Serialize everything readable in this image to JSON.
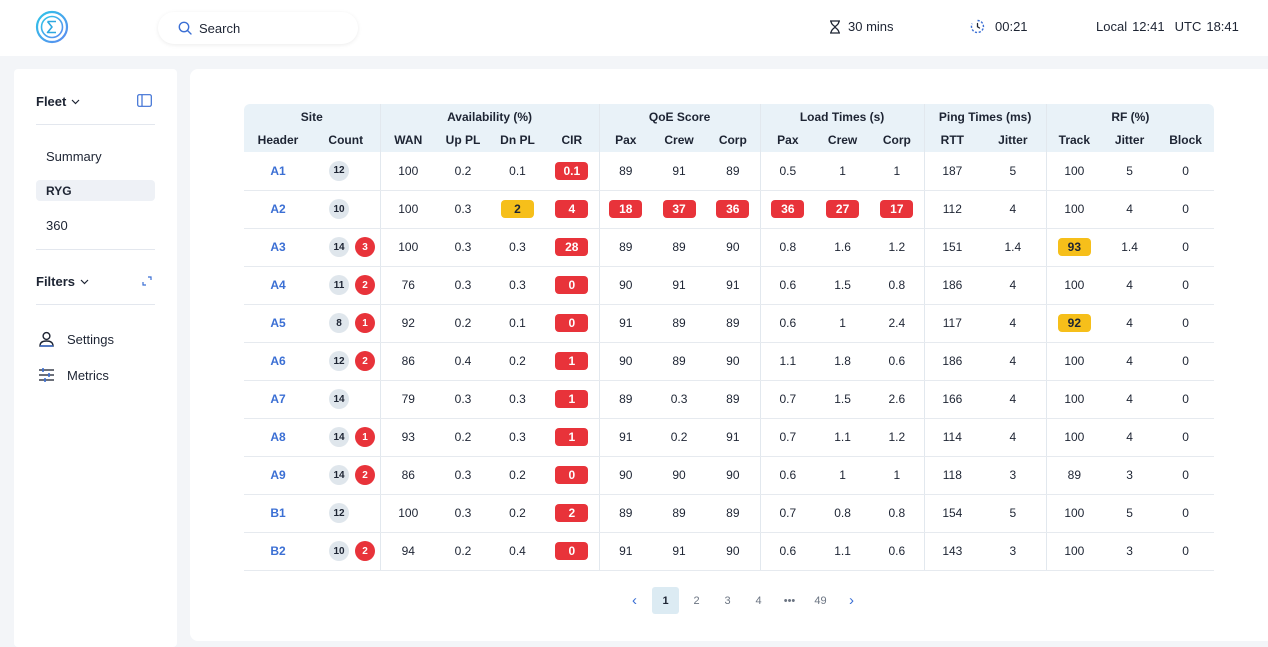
{
  "topbar": {
    "search_placeholder": "Search",
    "duration": "30 mins",
    "timer": "00:21",
    "local_label": "Local",
    "local_time": "12:41",
    "utc_label": "UTC",
    "utc_time": "18:41"
  },
  "sidebar": {
    "fleet_label": "Fleet",
    "nav": [
      "Summary",
      "RYG",
      "360"
    ],
    "active_nav": "RYG",
    "filters_label": "Filters",
    "settings_label": "Settings",
    "metrics_label": "Metrics"
  },
  "table": {
    "groups": [
      {
        "label": "Site",
        "span": 2
      },
      {
        "label": "Availability (%)",
        "span": 4
      },
      {
        "label": "QoE Score",
        "span": 3
      },
      {
        "label": "Load Times (s)",
        "span": 3
      },
      {
        "label": "Ping Times (ms)",
        "span": 2
      },
      {
        "label": "RF (%)",
        "span": 3
      }
    ],
    "columns": [
      "Header",
      "Count",
      "WAN",
      "Up PL",
      "Dn PL",
      "CIR",
      "Pax",
      "Crew",
      "Corp",
      "Pax",
      "Crew",
      "Corp",
      "RTT",
      "Jitter",
      "Track",
      "Jitter",
      "Block"
    ],
    "rows": [
      {
        "site": "A1",
        "count": "12",
        "alerts": "",
        "cells": [
          {
            "v": "100"
          },
          {
            "v": "0.2"
          },
          {
            "v": "0.1"
          },
          {
            "v": "0.1",
            "s": "red"
          },
          {
            "v": "89"
          },
          {
            "v": "91"
          },
          {
            "v": "89"
          },
          {
            "v": "0.5"
          },
          {
            "v": "1"
          },
          {
            "v": "1"
          },
          {
            "v": "187"
          },
          {
            "v": "5"
          },
          {
            "v": "100"
          },
          {
            "v": "5"
          },
          {
            "v": "0"
          }
        ]
      },
      {
        "site": "A2",
        "count": "10",
        "alerts": "",
        "cells": [
          {
            "v": "100"
          },
          {
            "v": "0.3"
          },
          {
            "v": "2",
            "s": "amber"
          },
          {
            "v": "4",
            "s": "red"
          },
          {
            "v": "18",
            "s": "red"
          },
          {
            "v": "37",
            "s": "red"
          },
          {
            "v": "36",
            "s": "red"
          },
          {
            "v": "36",
            "s": "red"
          },
          {
            "v": "27",
            "s": "red"
          },
          {
            "v": "17",
            "s": "red"
          },
          {
            "v": "112"
          },
          {
            "v": "4"
          },
          {
            "v": "100"
          },
          {
            "v": "4"
          },
          {
            "v": "0"
          }
        ]
      },
      {
        "site": "A3",
        "count": "14",
        "alerts": "3",
        "cells": [
          {
            "v": "100"
          },
          {
            "v": "0.3"
          },
          {
            "v": "0.3"
          },
          {
            "v": "28",
            "s": "red"
          },
          {
            "v": "89"
          },
          {
            "v": "89"
          },
          {
            "v": "90"
          },
          {
            "v": "0.8"
          },
          {
            "v": "1.6"
          },
          {
            "v": "1.2"
          },
          {
            "v": "151"
          },
          {
            "v": "1.4"
          },
          {
            "v": "93",
            "s": "amber"
          },
          {
            "v": "1.4"
          },
          {
            "v": "0"
          }
        ]
      },
      {
        "site": "A4",
        "count": "11",
        "alerts": "2",
        "cells": [
          {
            "v": "76"
          },
          {
            "v": "0.3"
          },
          {
            "v": "0.3"
          },
          {
            "v": "0",
            "s": "red"
          },
          {
            "v": "90"
          },
          {
            "v": "91"
          },
          {
            "v": "91"
          },
          {
            "v": "0.6"
          },
          {
            "v": "1.5"
          },
          {
            "v": "0.8"
          },
          {
            "v": "186"
          },
          {
            "v": "4"
          },
          {
            "v": "100"
          },
          {
            "v": "4"
          },
          {
            "v": "0"
          }
        ]
      },
      {
        "site": "A5",
        "count": "8",
        "alerts": "1",
        "cells": [
          {
            "v": "92"
          },
          {
            "v": "0.2"
          },
          {
            "v": "0.1"
          },
          {
            "v": "0",
            "s": "red"
          },
          {
            "v": "91"
          },
          {
            "v": "89"
          },
          {
            "v": "89"
          },
          {
            "v": "0.6"
          },
          {
            "v": "1"
          },
          {
            "v": "2.4"
          },
          {
            "v": "117"
          },
          {
            "v": "4"
          },
          {
            "v": "92",
            "s": "amber"
          },
          {
            "v": "4"
          },
          {
            "v": "0"
          }
        ]
      },
      {
        "site": "A6",
        "count": "12",
        "alerts": "2",
        "cells": [
          {
            "v": "86"
          },
          {
            "v": "0.4"
          },
          {
            "v": "0.2"
          },
          {
            "v": "1",
            "s": "red"
          },
          {
            "v": "90"
          },
          {
            "v": "89"
          },
          {
            "v": "90"
          },
          {
            "v": "1.1"
          },
          {
            "v": "1.8"
          },
          {
            "v": "0.6"
          },
          {
            "v": "186"
          },
          {
            "v": "4"
          },
          {
            "v": "100"
          },
          {
            "v": "4"
          },
          {
            "v": "0"
          }
        ]
      },
      {
        "site": "A7",
        "count": "14",
        "alerts": "",
        "cells": [
          {
            "v": "79"
          },
          {
            "v": "0.3"
          },
          {
            "v": "0.3"
          },
          {
            "v": "1",
            "s": "red"
          },
          {
            "v": "89"
          },
          {
            "v": "0.3"
          },
          {
            "v": "89"
          },
          {
            "v": "0.7"
          },
          {
            "v": "1.5"
          },
          {
            "v": "2.6"
          },
          {
            "v": "166"
          },
          {
            "v": "4"
          },
          {
            "v": "100"
          },
          {
            "v": "4"
          },
          {
            "v": "0"
          }
        ]
      },
      {
        "site": "A8",
        "count": "14",
        "alerts": "1",
        "cells": [
          {
            "v": "93"
          },
          {
            "v": "0.2"
          },
          {
            "v": "0.3"
          },
          {
            "v": "1",
            "s": "red"
          },
          {
            "v": "91"
          },
          {
            "v": "0.2"
          },
          {
            "v": "91"
          },
          {
            "v": "0.7"
          },
          {
            "v": "1.1"
          },
          {
            "v": "1.2"
          },
          {
            "v": "114"
          },
          {
            "v": "4"
          },
          {
            "v": "100"
          },
          {
            "v": "4"
          },
          {
            "v": "0"
          }
        ]
      },
      {
        "site": "A9",
        "count": "14",
        "alerts": "2",
        "cells": [
          {
            "v": "86"
          },
          {
            "v": "0.3"
          },
          {
            "v": "0.2"
          },
          {
            "v": "0",
            "s": "red"
          },
          {
            "v": "90"
          },
          {
            "v": "90"
          },
          {
            "v": "90"
          },
          {
            "v": "0.6"
          },
          {
            "v": "1"
          },
          {
            "v": "1"
          },
          {
            "v": "118"
          },
          {
            "v": "3"
          },
          {
            "v": "89"
          },
          {
            "v": "3"
          },
          {
            "v": "0"
          }
        ]
      },
      {
        "site": "B1",
        "count": "12",
        "alerts": "",
        "cells": [
          {
            "v": "100"
          },
          {
            "v": "0.3"
          },
          {
            "v": "0.2"
          },
          {
            "v": "2",
            "s": "red"
          },
          {
            "v": "89"
          },
          {
            "v": "89"
          },
          {
            "v": "89"
          },
          {
            "v": "0.7"
          },
          {
            "v": "0.8"
          },
          {
            "v": "0.8"
          },
          {
            "v": "154"
          },
          {
            "v": "5"
          },
          {
            "v": "100"
          },
          {
            "v": "5"
          },
          {
            "v": "0"
          }
        ]
      },
      {
        "site": "B2",
        "count": "10",
        "alerts": "2",
        "cells": [
          {
            "v": "94"
          },
          {
            "v": "0.2"
          },
          {
            "v": "0.4"
          },
          {
            "v": "0",
            "s": "red"
          },
          {
            "v": "91"
          },
          {
            "v": "91"
          },
          {
            "v": "90"
          },
          {
            "v": "0.6"
          },
          {
            "v": "1.1"
          },
          {
            "v": "0.6"
          },
          {
            "v": "143"
          },
          {
            "v": "3"
          },
          {
            "v": "100"
          },
          {
            "v": "3"
          },
          {
            "v": "0"
          }
        ]
      }
    ]
  },
  "pagination": {
    "pages": [
      "1",
      "2",
      "3",
      "4",
      "•••",
      "49"
    ],
    "current": "1"
  },
  "colors": {
    "accent": "#3b6fd4",
    "red": "#e8333a",
    "amber": "#f6bf1a",
    "header_bg": "#e9f2f8"
  }
}
